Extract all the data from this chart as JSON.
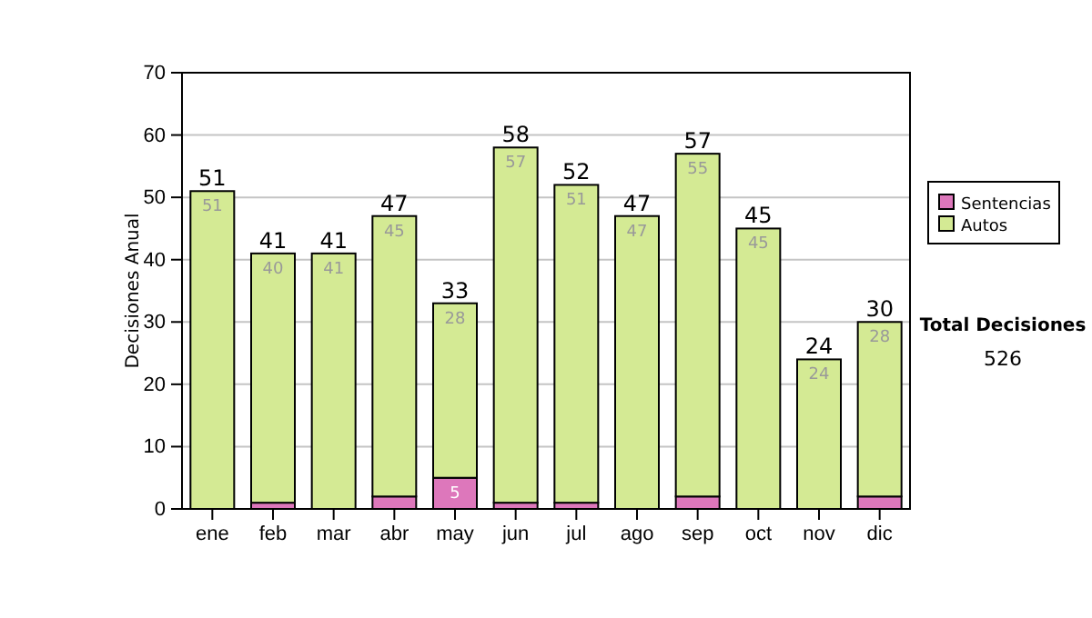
{
  "chart_data": {
    "type": "bar",
    "stacked": true,
    "ylabel": "Decisiones Anual",
    "categories": [
      "ene",
      "feb",
      "mar",
      "abr",
      "may",
      "jun",
      "jul",
      "ago",
      "sep",
      "oct",
      "nov",
      "dic"
    ],
    "series": [
      {
        "name": "Sentencias",
        "color": "#dd77bb",
        "values": [
          0,
          1,
          0,
          2,
          5,
          1,
          1,
          0,
          2,
          0,
          0,
          2
        ],
        "value_labels": [
          null,
          null,
          null,
          null,
          "5",
          null,
          null,
          null,
          null,
          null,
          null,
          null
        ]
      },
      {
        "name": "Autos",
        "color": "#d4ea94",
        "values": [
          51,
          40,
          41,
          45,
          28,
          57,
          51,
          47,
          55,
          45,
          24,
          28
        ],
        "value_labels": [
          "51",
          "40",
          "41",
          "45",
          "28",
          "57",
          "51",
          "47",
          "55",
          "45",
          "24",
          "28"
        ]
      }
    ],
    "totals": [
      "51",
      "41",
      "41",
      "47",
      "33",
      "58",
      "52",
      "47",
      "57",
      "45",
      "24",
      "30"
    ],
    "ylim": [
      0,
      70
    ],
    "yticks": [
      0,
      10,
      20,
      30,
      40,
      50,
      60,
      70
    ],
    "grid": "y",
    "legend": "right",
    "annotations": [
      "Total Decisiones",
      "526"
    ]
  }
}
